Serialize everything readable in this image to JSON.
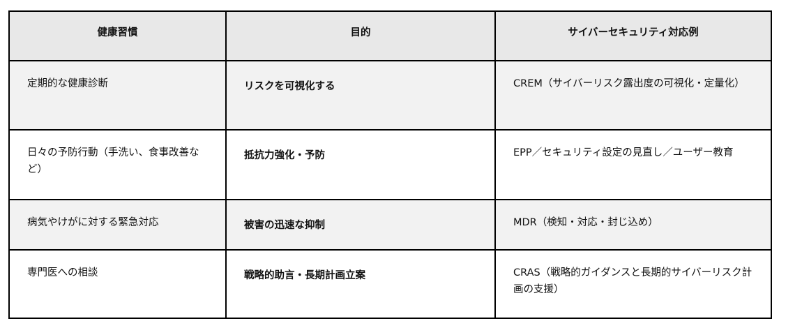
{
  "table": {
    "headers": [
      "健康習慣",
      "目的",
      "サイバーセキュリティ対応例"
    ],
    "rows": [
      [
        "定期的な健康診断",
        "リスクを可視化する",
        "CREM（サイバーリスク露出度の可視化・定量化）"
      ],
      [
        "日々の予防行動（手洗い、食事改善など）",
        "抵抗力強化・予防",
        "EPP／セキュリティ設定の見直し／ユーザー教育"
      ],
      [
        "病気やけがに対する緊急対応",
        "被害の迅速な抑制",
        "MDR（検知・対応・封じ込め）"
      ],
      [
        "専門医への相談",
        "戦略的助言・長期計画立案",
        "CRAS（戦略的ガイダンスと長期的サイバーリスク計画の支援）"
      ]
    ]
  },
  "colors": {
    "header_bg": "#e8e8e8",
    "shaded_row_bg": "#f2f2f2",
    "border": "#000000"
  }
}
